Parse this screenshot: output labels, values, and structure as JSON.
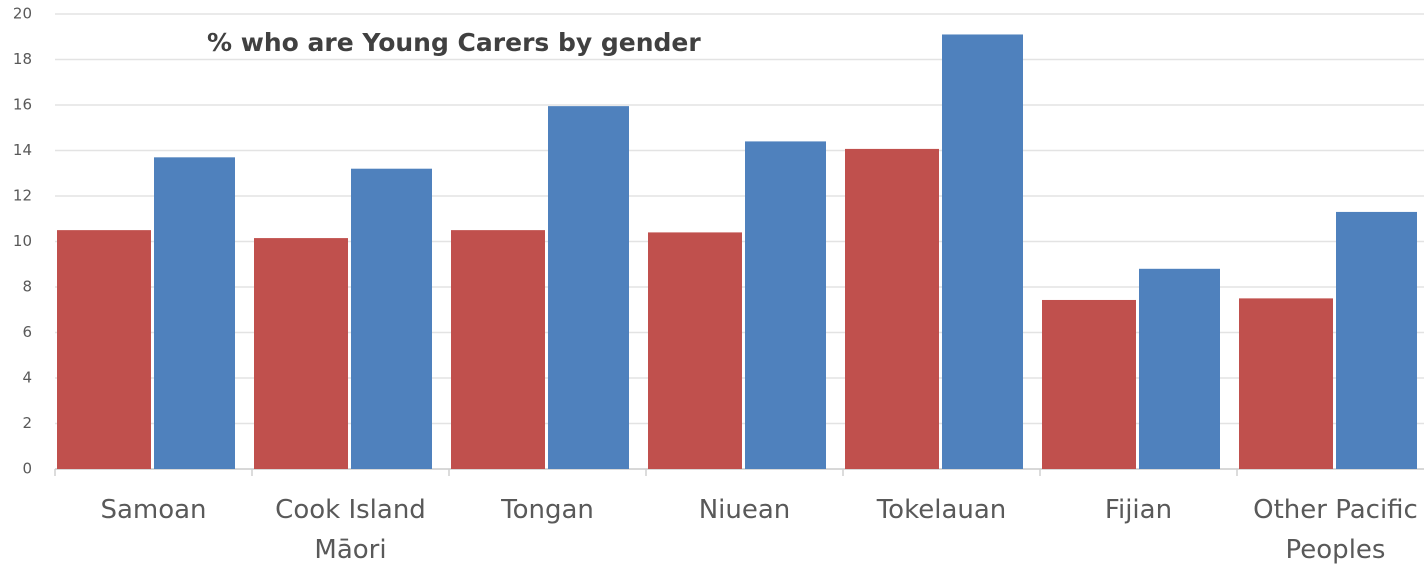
{
  "chart_data": {
    "type": "bar",
    "title": "% who are Young Carers by gender",
    "categories": [
      "Samoan",
      "Cook Island\nMāori",
      "Tongan",
      "Niuean",
      "Tokelauan",
      "Fijian",
      "Other Pacific\nPeoples"
    ],
    "series": [
      {
        "color": "#c0504d",
        "values": [
          10.5,
          10.15,
          10.5,
          10.4,
          14.07,
          7.43,
          7.5
        ]
      },
      {
        "color": "#4f81bd",
        "values": [
          13.7,
          13.2,
          15.95,
          14.4,
          19.1,
          8.8,
          11.3
        ]
      }
    ],
    "ylim": [
      0,
      20
    ],
    "yticks": [
      0,
      2,
      4,
      6,
      8,
      10,
      12,
      14,
      16,
      18,
      20
    ],
    "grid": true
  }
}
